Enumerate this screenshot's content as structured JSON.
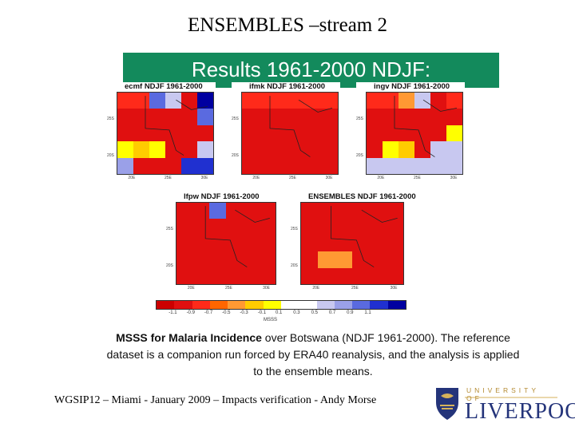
{
  "slide": {
    "title": "ENSEMBLES –stream 2",
    "banner": "Results 1961-2000 NDJF:",
    "caption_bold": "MSSS for Malaria Incidence",
    "caption_rest": " over Botswana (NDJF 1961-2000). The reference dataset is a companion run forced by ERA40 reanalysis, and the analysis is applied to the ensemble means.",
    "footer": "WGSIP12 – Miami - January 2009 – Impacts verification - Andy Morse",
    "logo_top": "UNIVERSITY OF",
    "logo_bottom": "LIVERPOOL"
  },
  "colors": {
    "banner": "#138a5c",
    "levels": [
      "#cc0000",
      "#e01010",
      "#ff2a1a",
      "#ff6600",
      "#ff9933",
      "#ffcc00",
      "#ffff00",
      "#ffffff",
      "#ffffff",
      "#c8c8f0",
      "#9aa0e8",
      "#5a6ae0",
      "#2030d0",
      "#0000a0"
    ],
    "liverpool_blue": "#24347a"
  },
  "colorbar": {
    "labels": [
      "-1.1",
      "-0.9",
      "-0.7",
      "-0.5",
      "-0.3",
      "-0.1",
      "0.1",
      "0.3",
      "0.5",
      "0.7",
      "0.9",
      "1.1"
    ],
    "caption": "MSSS"
  },
  "maps": [
    {
      "title": "ecmf NDJF 1961-2000",
      "yticks": [
        "20S",
        "25S"
      ],
      "xticks": [
        "20E",
        "25E",
        "30E"
      ],
      "cells": [
        [
          2,
          2,
          11,
          9,
          1,
          13
        ],
        [
          1,
          1,
          1,
          1,
          1,
          11
        ],
        [
          1,
          1,
          1,
          1,
          1,
          1
        ],
        [
          6,
          5,
          6,
          1,
          1,
          9
        ],
        [
          10,
          1,
          1,
          1,
          12,
          12
        ]
      ]
    },
    {
      "title": "ifmk NDJF 1961-2000",
      "yticks": [
        "20S",
        "25S"
      ],
      "xticks": [
        "20E",
        "25E",
        "30E"
      ],
      "cells": [
        [
          2,
          2,
          2,
          2,
          2,
          2
        ],
        [
          1,
          1,
          1,
          1,
          1,
          1
        ],
        [
          1,
          1,
          1,
          1,
          1,
          1
        ],
        [
          1,
          1,
          1,
          1,
          1,
          1
        ],
        [
          1,
          1,
          1,
          1,
          1,
          1
        ]
      ]
    },
    {
      "title": "ingv NDJF 1961-2000",
      "yticks": [
        "20S",
        "25S"
      ],
      "xticks": [
        "20E",
        "25E",
        "30E"
      ],
      "cells": [
        [
          2,
          2,
          4,
          9,
          1,
          2
        ],
        [
          1,
          1,
          1,
          1,
          1,
          1
        ],
        [
          1,
          1,
          1,
          1,
          1,
          6
        ],
        [
          1,
          6,
          5,
          1,
          9,
          9
        ],
        [
          9,
          9,
          9,
          9,
          9,
          9
        ]
      ]
    },
    {
      "title": "lfpw NDJF 1961-2000",
      "yticks": [
        "20S",
        "25S"
      ],
      "xticks": [
        "20E",
        "25E",
        "30E"
      ],
      "cells": [
        [
          1,
          1,
          11,
          1,
          1,
          1
        ],
        [
          1,
          1,
          1,
          1,
          1,
          1
        ],
        [
          1,
          1,
          1,
          1,
          1,
          1
        ],
        [
          1,
          1,
          1,
          1,
          1,
          1
        ],
        [
          1,
          1,
          1,
          1,
          1,
          1
        ]
      ]
    },
    {
      "title": "ENSEMBLES NDJF 1961-2000",
      "yticks": [
        "20S",
        "25S"
      ],
      "xticks": [
        "20E",
        "25E",
        "30E"
      ],
      "cells": [
        [
          1,
          1,
          1,
          1,
          1,
          1
        ],
        [
          1,
          1,
          1,
          1,
          1,
          1
        ],
        [
          1,
          1,
          1,
          1,
          1,
          1
        ],
        [
          1,
          4,
          4,
          1,
          1,
          1
        ],
        [
          1,
          1,
          1,
          1,
          1,
          1
        ]
      ]
    }
  ]
}
